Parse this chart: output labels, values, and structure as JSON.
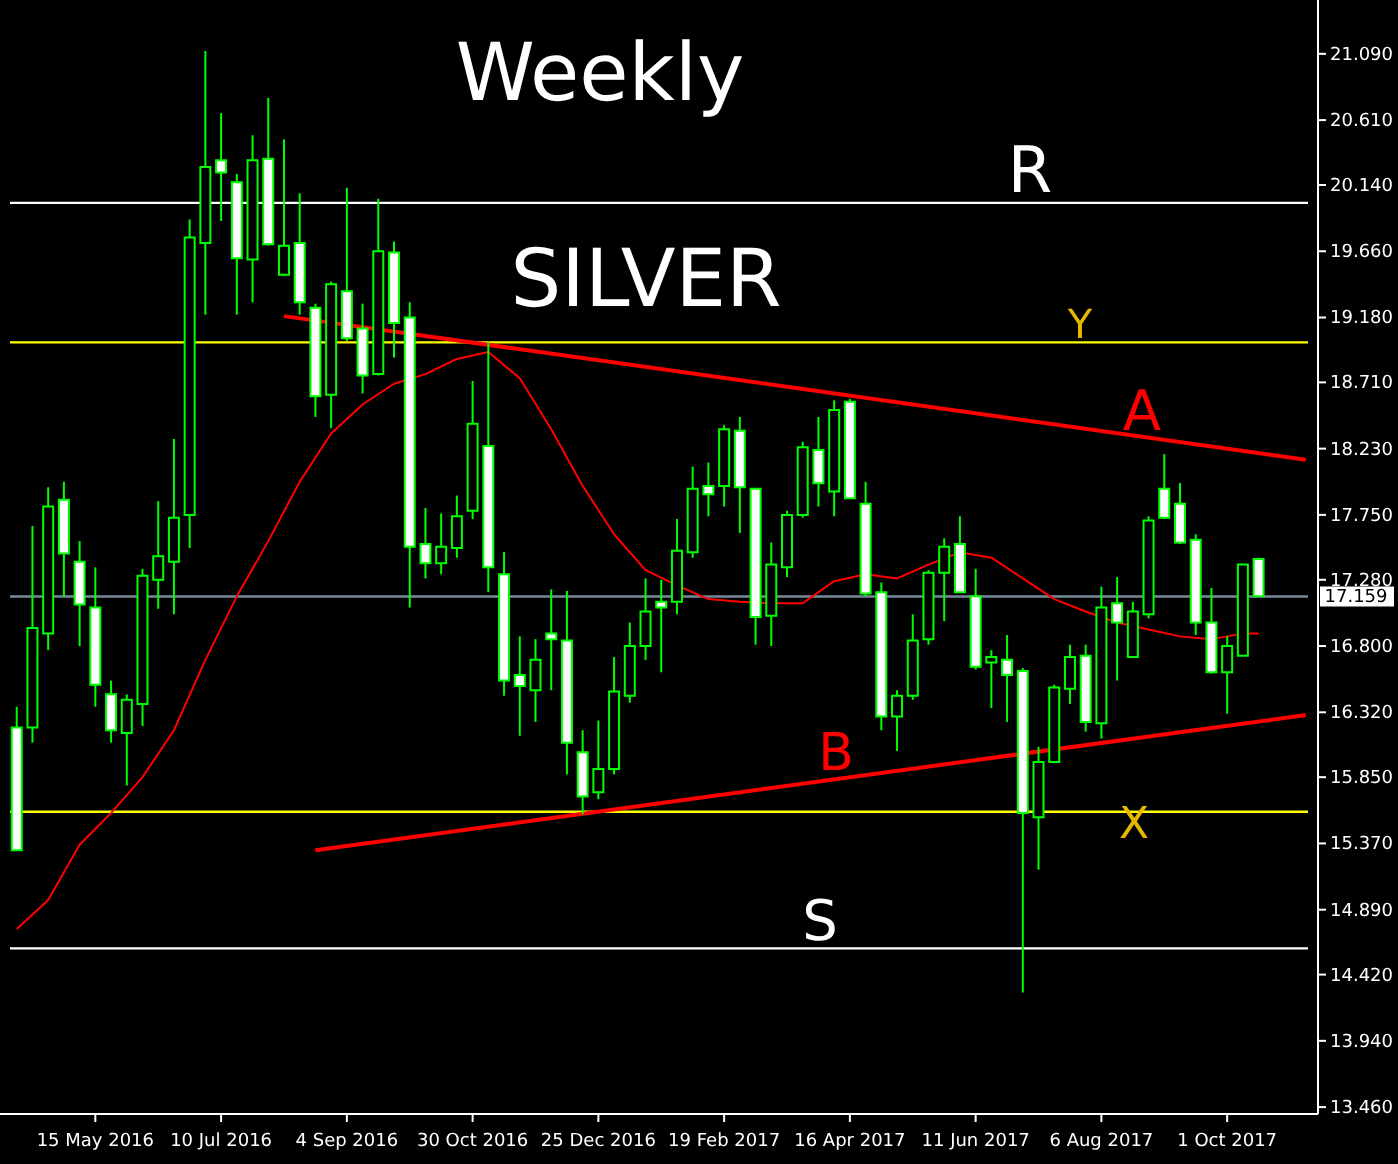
{
  "chart_data": {
    "type": "candlestick",
    "title": "Weekly",
    "subtitle": "SILVER",
    "color": "#00ff00",
    "x": [
      "2016-04-10",
      "2016-04-17",
      "2016-04-24",
      "2016-05-01",
      "2016-05-08",
      "2016-05-15",
      "2016-05-22",
      "2016-05-29",
      "2016-06-05",
      "2016-06-12",
      "2016-06-19",
      "2016-06-26",
      "2016-07-03",
      "2016-07-10",
      "2016-07-17",
      "2016-07-24",
      "2016-07-31",
      "2016-08-07",
      "2016-08-14",
      "2016-08-21",
      "2016-08-28",
      "2016-09-04",
      "2016-09-11",
      "2016-09-18",
      "2016-09-25",
      "2016-10-02",
      "2016-10-09",
      "2016-10-16",
      "2016-10-23",
      "2016-10-30",
      "2016-11-06",
      "2016-11-13",
      "2016-11-20",
      "2016-11-27",
      "2016-12-04",
      "2016-12-11",
      "2016-12-18",
      "2016-12-25",
      "2017-01-01",
      "2017-01-08",
      "2017-01-15",
      "2017-01-22",
      "2017-01-29",
      "2017-02-05",
      "2017-02-12",
      "2017-02-19",
      "2017-02-26",
      "2017-03-05",
      "2017-03-12",
      "2017-03-19",
      "2017-03-26",
      "2017-04-02",
      "2017-04-09",
      "2017-04-16",
      "2017-04-23",
      "2017-04-30",
      "2017-05-07",
      "2017-05-14",
      "2017-05-21",
      "2017-05-28",
      "2017-06-04",
      "2017-06-11",
      "2017-06-18",
      "2017-06-25",
      "2017-07-02",
      "2017-07-09",
      "2017-07-16",
      "2017-07-23",
      "2017-07-30",
      "2017-08-06",
      "2017-08-13",
      "2017-08-20",
      "2017-08-27",
      "2017-09-03",
      "2017-09-10",
      "2017-09-17",
      "2017-09-24",
      "2017-10-01",
      "2017-10-08",
      "2017-10-15"
    ],
    "ohlc": [
      [
        16.21,
        16.36,
        15.32,
        15.32
      ],
      [
        16.21,
        17.67,
        16.1,
        16.93
      ],
      [
        16.89,
        17.95,
        16.77,
        17.81
      ],
      [
        17.86,
        17.99,
        17.16,
        17.47
      ],
      [
        17.41,
        17.56,
        16.8,
        17.1
      ],
      [
        17.08,
        17.37,
        16.36,
        16.52
      ],
      [
        16.45,
        16.55,
        16.1,
        16.19
      ],
      [
        16.17,
        16.45,
        15.79,
        16.41
      ],
      [
        16.38,
        17.36,
        16.22,
        17.31
      ],
      [
        17.28,
        17.85,
        17.07,
        17.45
      ],
      [
        17.41,
        18.3,
        17.03,
        17.73
      ],
      [
        17.75,
        19.89,
        17.51,
        19.76
      ],
      [
        19.72,
        21.11,
        19.2,
        20.27
      ],
      [
        20.32,
        20.66,
        19.88,
        20.23
      ],
      [
        20.16,
        20.22,
        19.2,
        19.61
      ],
      [
        19.6,
        20.5,
        19.29,
        20.32
      ],
      [
        20.33,
        20.77,
        19.7,
        19.71
      ],
      [
        19.49,
        20.47,
        19.48,
        19.7
      ],
      [
        19.72,
        20.08,
        19.2,
        19.29
      ],
      [
        19.25,
        19.28,
        18.46,
        18.61
      ],
      [
        18.62,
        19.44,
        18.38,
        19.42
      ],
      [
        19.37,
        20.12,
        19.01,
        19.03
      ],
      [
        19.1,
        19.28,
        18.63,
        18.76
      ],
      [
        18.77,
        20.04,
        18.76,
        19.66
      ],
      [
        19.65,
        19.73,
        18.89,
        19.14
      ],
      [
        19.18,
        19.29,
        17.08,
        17.52
      ],
      [
        17.54,
        17.8,
        17.29,
        17.4
      ],
      [
        17.4,
        17.76,
        17.32,
        17.52
      ],
      [
        17.51,
        17.89,
        17.44,
        17.74
      ],
      [
        17.78,
        18.72,
        17.72,
        18.41
      ],
      [
        18.25,
        19.0,
        17.19,
        17.37
      ],
      [
        17.32,
        17.48,
        16.44,
        16.55
      ],
      [
        16.59,
        16.87,
        16.15,
        16.51
      ],
      [
        16.48,
        16.85,
        16.25,
        16.7
      ],
      [
        16.89,
        17.21,
        16.48,
        16.85
      ],
      [
        16.84,
        17.2,
        15.87,
        16.1
      ],
      [
        16.03,
        16.19,
        15.58,
        15.71
      ],
      [
        15.74,
        16.26,
        15.69,
        15.91
      ],
      [
        15.91,
        16.72,
        15.87,
        16.47
      ],
      [
        16.44,
        16.97,
        16.39,
        16.8
      ],
      [
        16.8,
        17.29,
        16.7,
        17.05
      ],
      [
        17.12,
        17.28,
        16.61,
        17.08
      ],
      [
        17.12,
        17.72,
        17.03,
        17.49
      ],
      [
        17.48,
        18.1,
        17.44,
        17.94
      ],
      [
        17.96,
        18.13,
        17.74,
        17.9
      ],
      [
        17.96,
        18.4,
        17.81,
        18.37
      ],
      [
        18.36,
        18.46,
        17.62,
        17.95
      ],
      [
        17.94,
        17.94,
        16.81,
        17.01
      ],
      [
        17.02,
        17.55,
        16.8,
        17.39
      ],
      [
        17.37,
        17.78,
        17.3,
        17.75
      ],
      [
        17.75,
        18.28,
        17.73,
        18.24
      ],
      [
        18.22,
        18.46,
        17.81,
        17.98
      ],
      [
        17.92,
        18.58,
        17.74,
        18.51
      ],
      [
        18.57,
        18.59,
        17.87,
        17.87
      ],
      [
        17.83,
        17.99,
        17.16,
        17.18
      ],
      [
        17.19,
        17.26,
        16.19,
        16.29
      ],
      [
        16.29,
        16.48,
        16.04,
        16.44
      ],
      [
        16.44,
        17.03,
        16.41,
        16.84
      ],
      [
        16.85,
        17.35,
        16.81,
        17.33
      ],
      [
        17.33,
        17.58,
        16.98,
        17.52
      ],
      [
        17.54,
        17.74,
        17.19,
        17.19
      ],
      [
        17.16,
        17.36,
        16.63,
        16.65
      ],
      [
        16.68,
        16.77,
        16.35,
        16.72
      ],
      [
        16.7,
        16.88,
        16.25,
        16.59
      ],
      [
        16.62,
        16.64,
        14.29,
        15.59
      ],
      [
        15.56,
        16.07,
        15.18,
        15.96
      ],
      [
        15.96,
        16.52,
        15.95,
        16.5
      ],
      [
        16.49,
        16.81,
        16.38,
        16.72
      ],
      [
        16.73,
        16.81,
        16.18,
        16.25
      ],
      [
        16.24,
        17.23,
        16.13,
        17.08
      ],
      [
        17.11,
        17.3,
        16.55,
        16.97
      ],
      [
        16.72,
        17.12,
        16.72,
        17.05
      ],
      [
        17.03,
        17.74,
        17.0,
        17.71
      ],
      [
        17.94,
        18.19,
        17.72,
        17.73
      ],
      [
        17.83,
        17.98,
        17.54,
        17.55
      ],
      [
        17.57,
        17.61,
        16.88,
        16.97
      ],
      [
        16.97,
        17.22,
        16.6,
        16.61
      ],
      [
        16.61,
        16.87,
        16.31,
        16.8
      ],
      [
        16.73,
        17.39,
        16.73,
        17.39
      ],
      [
        17.43,
        17.44,
        17.16,
        17.16
      ]
    ],
    "series": [
      {
        "type": "line",
        "color": "#ff0000",
        "x": [
          "2016-04-10",
          "2016-04-24",
          "2016-05-08",
          "2016-05-22",
          "2016-06-05",
          "2016-06-19",
          "2016-07-03",
          "2016-07-17",
          "2016-07-31",
          "2016-08-14",
          "2016-08-28",
          "2016-09-11",
          "2016-09-25",
          "2016-10-09",
          "2016-10-23",
          "2016-11-06",
          "2016-11-20",
          "2016-12-04",
          "2016-12-18",
          "2017-01-01",
          "2017-01-15",
          "2017-01-29",
          "2017-02-12",
          "2017-02-26",
          "2017-03-12",
          "2017-03-26",
          "2017-04-09",
          "2017-04-23",
          "2017-05-07",
          "2017-05-21",
          "2017-06-04",
          "2017-06-18",
          "2017-07-02",
          "2017-07-16",
          "2017-07-30",
          "2017-08-13",
          "2017-08-27",
          "2017-09-10",
          "2017-09-24",
          "2017-10-08",
          "2017-10-15"
        ],
        "values": [
          14.75,
          14.96,
          15.36,
          15.59,
          15.85,
          16.19,
          16.7,
          17.16,
          17.56,
          17.99,
          18.34,
          18.55,
          18.7,
          18.77,
          18.88,
          18.93,
          18.74,
          18.37,
          17.96,
          17.61,
          17.35,
          17.24,
          17.14,
          17.12,
          17.11,
          17.11,
          17.27,
          17.32,
          17.29,
          17.39,
          17.48,
          17.44,
          17.29,
          17.14,
          17.05,
          16.97,
          16.92,
          16.87,
          16.85,
          16.89,
          16.89
        ]
      },
      {
        "type": "line",
        "color": "#ff0000",
        "x": [
          "2016-08-07",
          "2017-11-05"
        ],
        "values": [
          19.19,
          18.15
        ]
      },
      {
        "type": "line",
        "color": "#ff0000",
        "x": [
          "2016-08-21",
          "2017-11-05"
        ],
        "values": [
          15.32,
          16.3
        ]
      }
    ],
    "ref_lines": [
      {
        "axis": "y",
        "value": 20.01,
        "color": "#ffffff"
      },
      {
        "axis": "y",
        "value": 19.0,
        "color": "#ffff00"
      },
      {
        "axis": "y",
        "value": 17.159,
        "label": "17.159",
        "color": "#778899"
      },
      {
        "axis": "y",
        "value": 15.6,
        "color": "#ffff00"
      },
      {
        "axis": "y",
        "value": 14.61,
        "color": "#ffffff"
      }
    ],
    "annotations": [
      "R",
      "Y",
      "A",
      "B",
      "X",
      "S"
    ],
    "xlim": [
      "2016-04-07",
      "2017-11-06"
    ],
    "xticks": [
      {
        "value": "2016-05-15",
        "label": "15 May 2016"
      },
      {
        "value": "2016-07-10",
        "label": "10 Jul 2016"
      },
      {
        "value": "2016-09-04",
        "label": "4 Sep 2016"
      },
      {
        "value": "2016-10-30",
        "label": "30 Oct 2016"
      },
      {
        "value": "2016-12-25",
        "label": "25 Dec 2016"
      },
      {
        "value": "2017-02-19",
        "label": "19 Feb 2017"
      },
      {
        "value": "2017-04-16",
        "label": "16 Apr 2017"
      },
      {
        "value": "2017-06-11",
        "label": "11 Jun 2017"
      },
      {
        "value": "2017-08-06",
        "label": "6 Aug 2017"
      },
      {
        "value": "2017-10-01",
        "label": "1 Oct 2017"
      }
    ],
    "ylim": [
      13.41,
      21.48
    ],
    "yticks": [
      {
        "value": 21.09,
        "label": "21.090"
      },
      {
        "value": 20.61,
        "label": "20.610"
      },
      {
        "value": 20.14,
        "label": "20.140"
      },
      {
        "value": 19.66,
        "label": "19.660"
      },
      {
        "value": 19.18,
        "label": "19.180"
      },
      {
        "value": 18.71,
        "label": "18.710"
      },
      {
        "value": 18.23,
        "label": "18.230"
      },
      {
        "value": 17.75,
        "label": "17.750"
      },
      {
        "value": 17.28,
        "label": "17.280"
      },
      {
        "value": 16.8,
        "label": "16.800"
      },
      {
        "value": 16.32,
        "label": "16.320"
      },
      {
        "value": 15.85,
        "label": "15.850"
      },
      {
        "value": 15.37,
        "label": "15.370"
      },
      {
        "value": 14.89,
        "label": "14.890"
      },
      {
        "value": 14.42,
        "label": "14.420"
      },
      {
        "value": 13.94,
        "label": "13.940"
      },
      {
        "value": 13.46,
        "label": "13.460"
      }
    ]
  }
}
